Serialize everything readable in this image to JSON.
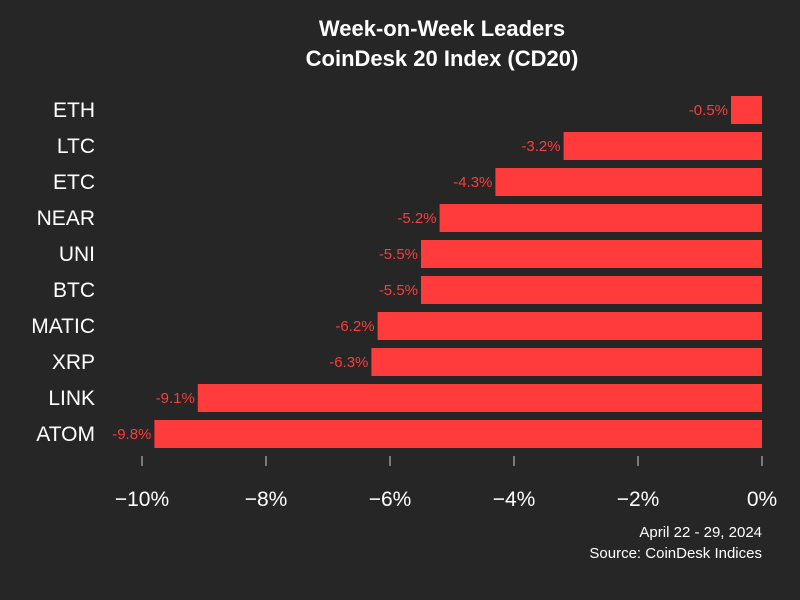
{
  "chart_data": {
    "type": "bar",
    "orientation": "horizontal",
    "title": "Week-on-Week Leaders",
    "subtitle": "CoinDesk 20 Index (CD20)",
    "categories": [
      "ETH",
      "LTC",
      "ETC",
      "NEAR",
      "UNI",
      "BTC",
      "MATIC",
      "XRP",
      "LINK",
      "ATOM"
    ],
    "values": [
      -0.5,
      -3.2,
      -4.3,
      -5.2,
      -5.5,
      -5.5,
      -6.2,
      -6.3,
      -9.1,
      -9.8
    ],
    "data_labels": [
      "-0.5%",
      "-3.2%",
      "-4.3%",
      "-5.2%",
      "-5.5%",
      "-5.5%",
      "-6.2%",
      "-6.3%",
      "-9.1%",
      "-9.8%"
    ],
    "xlim": [
      -10,
      0
    ],
    "x_ticks": [
      -10,
      -8,
      -6,
      -4,
      -2,
      0
    ],
    "x_tick_labels": [
      "−10%",
      "−8%",
      "−6%",
      "−4%",
      "−2%",
      "0%"
    ],
    "xlabel": "",
    "ylabel": "",
    "grid": false,
    "legend": "none",
    "bar_color": "#ff3b3b",
    "label_color": "#ff3b3b",
    "background_color": "#262626"
  },
  "footer": {
    "date_range": "April 22 - 29, 2024",
    "source": "Source: CoinDesk Indices"
  }
}
